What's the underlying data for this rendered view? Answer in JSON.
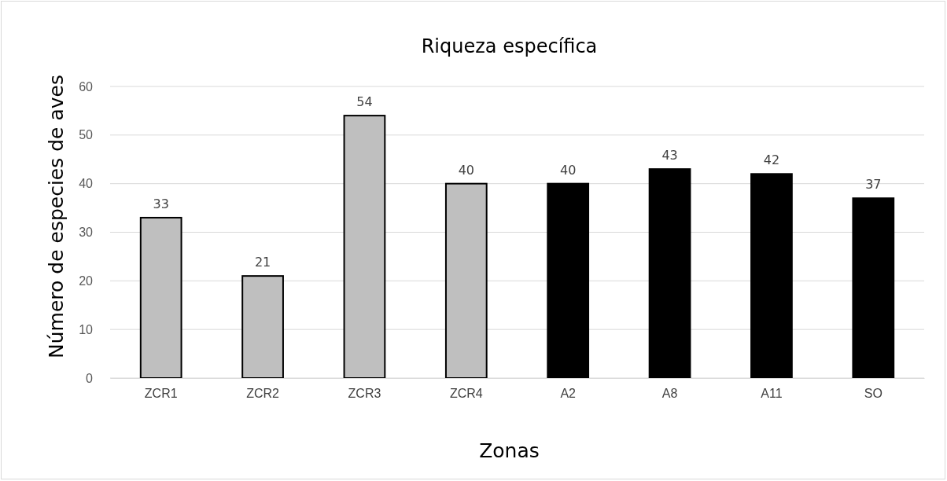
{
  "chart_data": {
    "type": "bar",
    "title": "Riqueza específica",
    "xlabel": "Zonas",
    "ylabel": "Número de especies de aves",
    "categories": [
      "ZCR1",
      "ZCR2",
      "ZCR3",
      "ZCR4",
      "A2",
      "A8",
      "A11",
      "SO"
    ],
    "values": [
      33,
      21,
      54,
      40,
      40,
      43,
      42,
      37
    ],
    "colors": [
      "#bfbfbf",
      "#bfbfbf",
      "#bfbfbf",
      "#bfbfbf",
      "#000000",
      "#000000",
      "#000000",
      "#000000"
    ],
    "ylim": [
      0,
      60
    ],
    "yticks": [
      0,
      10,
      20,
      30,
      40,
      50,
      60
    ],
    "grid": "y",
    "data_labels": true
  }
}
